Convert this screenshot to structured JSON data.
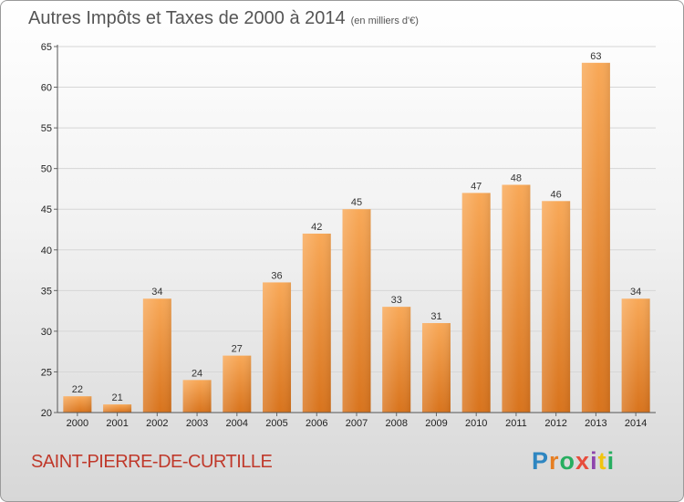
{
  "header": {
    "title": "Autres Impôts et Taxes de 2000 à 2014",
    "subtitle": "(en milliers d'€)"
  },
  "footer": {
    "town": "SAINT-PIERRE-DE-CURTILLE",
    "logo_letters": [
      "P",
      "r",
      "o",
      "x",
      "i",
      "t",
      "i"
    ],
    "logo_colors": [
      "#2e86c1",
      "#e67e22",
      "#27ae60",
      "#e74c3c",
      "#8e44ad",
      "#f1c40f",
      "#27ae60"
    ]
  },
  "chart_data": {
    "type": "bar",
    "title": "Autres Impôts et Taxes de 2000 à 2014",
    "subtitle": "(en milliers d'€)",
    "xlabel": "",
    "ylabel": "",
    "categories": [
      "2000",
      "2001",
      "2002",
      "2003",
      "2004",
      "2005",
      "2006",
      "2007",
      "2008",
      "2009",
      "2010",
      "2011",
      "2012",
      "2013",
      "2014"
    ],
    "values": [
      22,
      21,
      34,
      24,
      27,
      36,
      42,
      45,
      33,
      31,
      47,
      48,
      46,
      63,
      34
    ],
    "ylim": [
      20,
      65
    ],
    "yticks": [
      20,
      25,
      30,
      35,
      40,
      45,
      50,
      55,
      60,
      65
    ],
    "grid": "horizontal",
    "bar_color": "#f0903a",
    "legend": "none"
  }
}
